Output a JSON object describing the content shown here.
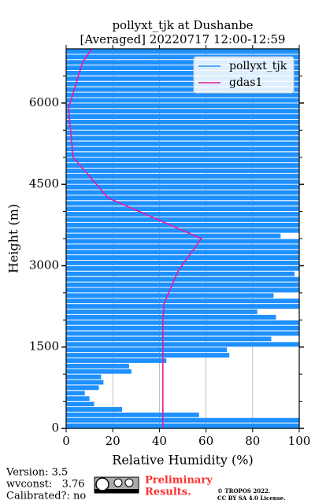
{
  "chart_data": {
    "type": "profile",
    "title": "pollyxt_tjk at Dushanbe",
    "subtitle": "[Averaged] 20220717 12:00-12:59",
    "xlabel": "Relative Humidity (%)",
    "ylabel": "Height (m)",
    "xlim": [
      0,
      100
    ],
    "xticks": [
      0,
      20,
      40,
      60,
      80,
      100
    ],
    "ylim": [
      0,
      7000
    ],
    "yticks": [
      0,
      1500,
      3000,
      4500,
      6000
    ],
    "yticks_minor": [
      500,
      1000,
      2000,
      2500,
      3500,
      4000,
      5000,
      5500,
      6500
    ],
    "grid": "x",
    "legend": "upper right",
    "series": [
      {
        "name": "pollyxt_tjk",
        "color": "#1e90ff",
        "heights": [
          0,
          100,
          200,
          300,
          400,
          500,
          600,
          700,
          800,
          900,
          1000,
          1100,
          1200,
          1300,
          1400,
          1500,
          1600,
          1700,
          1800,
          1900,
          2000,
          2100,
          2200,
          2300,
          2400,
          2500,
          2600,
          2700,
          2800,
          2900,
          3000,
          3100,
          3200,
          3300,
          3400,
          3500,
          3600,
          3700,
          3800,
          3900,
          4000,
          4100,
          4200,
          4300,
          4400,
          4500,
          4600,
          4700,
          4800,
          4900,
          5000,
          5100,
          5200,
          5300,
          5400,
          5500,
          5600,
          5700,
          5800,
          5900,
          6000,
          6100,
          6200,
          6300,
          6400,
          6500,
          6600,
          6700,
          6800,
          6900
        ],
        "values": [
          100,
          100,
          57,
          24,
          12,
          10,
          8,
          14,
          16,
          15,
          28,
          27,
          43,
          70,
          69,
          100,
          88,
          100,
          100,
          100,
          90,
          82,
          100,
          100,
          89,
          100,
          100,
          100,
          98,
          100,
          100,
          100,
          100,
          100,
          100,
          92,
          100,
          100,
          100,
          100,
          100,
          100,
          100,
          100,
          100,
          100,
          100,
          100,
          100,
          100,
          100,
          100,
          100,
          100,
          100,
          100,
          100,
          100,
          100,
          100,
          100,
          100,
          100,
          100,
          100,
          100,
          100,
          100,
          100,
          100
        ]
      },
      {
        "name": "gdas1",
        "color": "#e8199a",
        "heights": [
          0,
          500,
          1000,
          1500,
          2000,
          2300,
          2900,
          3500,
          4250,
          5000,
          5900,
          6750,
          7000
        ],
        "values": [
          41.5,
          41.5,
          41.5,
          41.5,
          41.5,
          42,
          48,
          58,
          18,
          3,
          1,
          7,
          11
        ]
      }
    ]
  },
  "footer": {
    "version": "Version: 3.5",
    "wvconst": "wvconst:   3.76",
    "calibrated": "Calibrated?: no",
    "preliminary": "Preliminary",
    "results": "Results.",
    "copyright": "© TROPOS 2022.",
    "license": "CC BY SA 4.0 License."
  }
}
